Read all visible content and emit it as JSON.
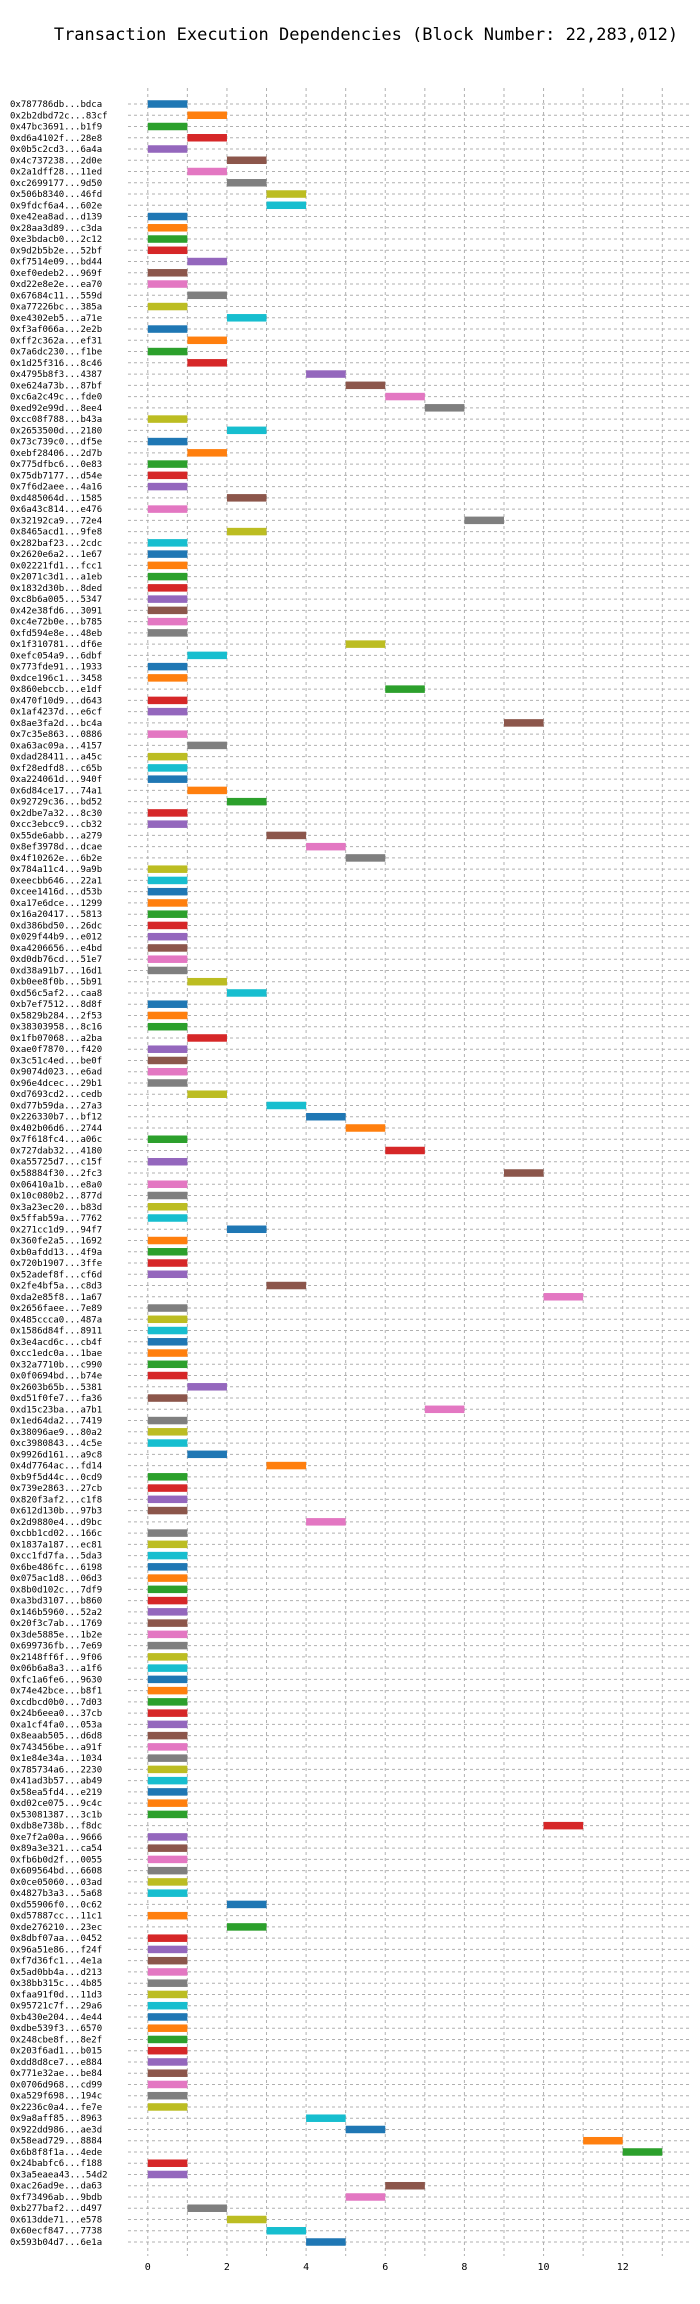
{
  "chart_data": {
    "type": "bar",
    "orientation": "horizontal-gantt",
    "title": "Transaction Execution Dependencies (Block Number: 22,283,012)",
    "xlabel": "",
    "ylabel": "",
    "xlim": [
      -0.5,
      13.7
    ],
    "xticks": [
      0,
      2,
      4,
      6,
      8,
      10,
      12
    ],
    "grid": true,
    "bar_width": 1,
    "palette": [
      "#1f77b4",
      "#ff7f0e",
      "#2ca02c",
      "#d62728",
      "#9467bd",
      "#8c564b",
      "#e377c2",
      "#7f7f7f",
      "#bcbd22",
      "#17becf"
    ],
    "transactions": [
      {
        "tx": "0x787786db...bdca",
        "start": 0
      },
      {
        "tx": "0x2b2dbd72c...83cf",
        "start": 1
      },
      {
        "tx": "0x47bc3691...b1f9",
        "start": 0
      },
      {
        "tx": "0xd6a4102f...28e8",
        "start": 1
      },
      {
        "tx": "0x0b5c2cd3...6a4a",
        "start": 0
      },
      {
        "tx": "0x4c737238...2d0e",
        "start": 2
      },
      {
        "tx": "0x2a1dff28...11ed",
        "start": 1
      },
      {
        "tx": "0xc2699177...9d50",
        "start": 2
      },
      {
        "tx": "0x506b8340...46fd",
        "start": 3
      },
      {
        "tx": "0x9fdcf6a4...602e",
        "start": 3
      },
      {
        "tx": "0xe42ea8ad...d139",
        "start": 0
      },
      {
        "tx": "0x28aa3d89...c3da",
        "start": 0
      },
      {
        "tx": "0xe3bdacb0...2c12",
        "start": 0
      },
      {
        "tx": "0x9d2b5b2e...52bf",
        "start": 0
      },
      {
        "tx": "0xf7514e09...bd44",
        "start": 1
      },
      {
        "tx": "0xef0edeb2...969f",
        "start": 0
      },
      {
        "tx": "0xd22e8e2e...ea70",
        "start": 0
      },
      {
        "tx": "0x67684c11...559d",
        "start": 1
      },
      {
        "tx": "0xa77226bc...385a",
        "start": 0
      },
      {
        "tx": "0xe4302eb5...a71e",
        "start": 2
      },
      {
        "tx": "0xf3af066a...2e2b",
        "start": 0
      },
      {
        "tx": "0xff2c362a...ef31",
        "start": 1
      },
      {
        "tx": "0x7a6dc230...f1be",
        "start": 0
      },
      {
        "tx": "0x1d25f316...8c46",
        "start": 1
      },
      {
        "tx": "0x4795b8f3...4387",
        "start": 4
      },
      {
        "tx": "0xe624a73b...87bf",
        "start": 5
      },
      {
        "tx": "0xc6a2c49c...fde0",
        "start": 6
      },
      {
        "tx": "0xed92e99d...8ee4",
        "start": 7
      },
      {
        "tx": "0xcc08f788...b43a",
        "start": 0
      },
      {
        "tx": "0x2653500d...2180",
        "start": 2
      },
      {
        "tx": "0x73c739c0...df5e",
        "start": 0
      },
      {
        "tx": "0xebf28406...2d7b",
        "start": 1
      },
      {
        "tx": "0x775dfbc6...0e83",
        "start": 0
      },
      {
        "tx": "0x75db7177...d54e",
        "start": 0
      },
      {
        "tx": "0x7f6d2aee...4a16",
        "start": 0
      },
      {
        "tx": "0xd485064d...1585",
        "start": 2
      },
      {
        "tx": "0x6a43c814...e476",
        "start": 0
      },
      {
        "tx": "0x32192ca9...72e4",
        "start": 8
      },
      {
        "tx": "0x8465acd1...9fe8",
        "start": 2
      },
      {
        "tx": "0x282baf23...2cdc",
        "start": 0
      },
      {
        "tx": "0x2620e6a2...1e67",
        "start": 0
      },
      {
        "tx": "0x02221fd1...fcc1",
        "start": 0
      },
      {
        "tx": "0x2071c3d1...a1eb",
        "start": 0
      },
      {
        "tx": "0x1832d30b...8ded",
        "start": 0
      },
      {
        "tx": "0xc8b6a005...5347",
        "start": 0
      },
      {
        "tx": "0x42e38fd6...3091",
        "start": 0
      },
      {
        "tx": "0xc4e72b0e...b785",
        "start": 0
      },
      {
        "tx": "0xfd594e8e...48eb",
        "start": 0
      },
      {
        "tx": "0x1f310781...df6e",
        "start": 5
      },
      {
        "tx": "0xefc054a9...6dbf",
        "start": 1
      },
      {
        "tx": "0x773fde91...1933",
        "start": 0
      },
      {
        "tx": "0xdce196c1...3458",
        "start": 0
      },
      {
        "tx": "0x860ebccb...e1df",
        "start": 6
      },
      {
        "tx": "0x470f10d9...d643",
        "start": 0
      },
      {
        "tx": "0x1af4237d...e6cf",
        "start": 0
      },
      {
        "tx": "0x8ae3fa2d...bc4a",
        "start": 9
      },
      {
        "tx": "0x7c35e863...0886",
        "start": 0
      },
      {
        "tx": "0xa63ac09a...4157",
        "start": 1
      },
      {
        "tx": "0xdad28411...a45c",
        "start": 0
      },
      {
        "tx": "0xf28edfd8...c65b",
        "start": 0
      },
      {
        "tx": "0xa224061d...940f",
        "start": 0
      },
      {
        "tx": "0x6d84ce17...74a1",
        "start": 1
      },
      {
        "tx": "0x92729c36...bd52",
        "start": 2
      },
      {
        "tx": "0x2dbe7a32...8c30",
        "start": 0
      },
      {
        "tx": "0xcc3ebcc9...cb32",
        "start": 0
      },
      {
        "tx": "0x55de6abb...a279",
        "start": 3
      },
      {
        "tx": "0x8ef3978d...dcae",
        "start": 4
      },
      {
        "tx": "0x4f10262e...6b2e",
        "start": 5
      },
      {
        "tx": "0x784a11c4...9a9b",
        "start": 0
      },
      {
        "tx": "0xeecbb646...22a1",
        "start": 0
      },
      {
        "tx": "0xcee1416d...d53b",
        "start": 0
      },
      {
        "tx": "0xa17e6dce...1299",
        "start": 0
      },
      {
        "tx": "0x16a20417...5813",
        "start": 0
      },
      {
        "tx": "0xd386bd50...26dc",
        "start": 0
      },
      {
        "tx": "0x029f44b9...e012",
        "start": 0
      },
      {
        "tx": "0xa4206656...e4bd",
        "start": 0
      },
      {
        "tx": "0xd0db76cd...51e7",
        "start": 0
      },
      {
        "tx": "0xd38a91b7...16d1",
        "start": 0
      },
      {
        "tx": "0xb0ee8f0b...5b91",
        "start": 1
      },
      {
        "tx": "0xd56c5af2...caa8",
        "start": 2
      },
      {
        "tx": "0xb7ef7512...8d8f",
        "start": 0
      },
      {
        "tx": "0x5829b284...2f53",
        "start": 0
      },
      {
        "tx": "0x38303958...8c16",
        "start": 0
      },
      {
        "tx": "0x1fb07068...a2ba",
        "start": 1
      },
      {
        "tx": "0xae0f7870...f420",
        "start": 0
      },
      {
        "tx": "0x3c51c4ed...be0f",
        "start": 0
      },
      {
        "tx": "0x9074d023...e6ad",
        "start": 0
      },
      {
        "tx": "0x96e4dcec...29b1",
        "start": 0
      },
      {
        "tx": "0xd7693cd2...cedb",
        "start": 1
      },
      {
        "tx": "0xd77b59da...27a3",
        "start": 3
      },
      {
        "tx": "0x226330b7...bf12",
        "start": 4
      },
      {
        "tx": "0x402b06d6...2744",
        "start": 5
      },
      {
        "tx": "0x7f618fc4...a06c",
        "start": 0
      },
      {
        "tx": "0x727dab32...4180",
        "start": 6
      },
      {
        "tx": "0xa55725d7...c15f",
        "start": 0
      },
      {
        "tx": "0x58884f30...2fc3",
        "start": 9
      },
      {
        "tx": "0x06410a1b...e8a0",
        "start": 0
      },
      {
        "tx": "0x10c080b2...877d",
        "start": 0
      },
      {
        "tx": "0x3a23ec20...b83d",
        "start": 0
      },
      {
        "tx": "0x5ffab59a...7762",
        "start": 0
      },
      {
        "tx": "0x271cc1d9...94f7",
        "start": 2
      },
      {
        "tx": "0x360fe2a5...1692",
        "start": 0
      },
      {
        "tx": "0xb0afdd13...4f9a",
        "start": 0
      },
      {
        "tx": "0x720b1907...3ffe",
        "start": 0
      },
      {
        "tx": "0x52adef8f...cf6d",
        "start": 0
      },
      {
        "tx": "0x2fe4bf5a...c8d3",
        "start": 3
      },
      {
        "tx": "0xda2e85f8...1a67",
        "start": 10
      },
      {
        "tx": "0x2656faee...7e89",
        "start": 0
      },
      {
        "tx": "0x485ccca0...487a",
        "start": 0
      },
      {
        "tx": "0x1586d84f...8911",
        "start": 0
      },
      {
        "tx": "0x3e4acd6c...cb4f",
        "start": 0
      },
      {
        "tx": "0xcc1edc0a...1bae",
        "start": 0
      },
      {
        "tx": "0x32a7710b...c990",
        "start": 0
      },
      {
        "tx": "0x0f0694bd...b74e",
        "start": 0
      },
      {
        "tx": "0x2603b65b...5381",
        "start": 1
      },
      {
        "tx": "0xd51f0fe7...fa36",
        "start": 0
      },
      {
        "tx": "0xd15c23ba...a7b1",
        "start": 7
      },
      {
        "tx": "0x1ed64da2...7419",
        "start": 0
      },
      {
        "tx": "0x38096ae9...80a2",
        "start": 0
      },
      {
        "tx": "0xc3980843...4c5e",
        "start": 0
      },
      {
        "tx": "0x9926d161...a9c8",
        "start": 1
      },
      {
        "tx": "0x4d7764ac...fd14",
        "start": 3
      },
      {
        "tx": "0xb9f5d44c...0cd9",
        "start": 0
      },
      {
        "tx": "0x739e2863...27cb",
        "start": 0
      },
      {
        "tx": "0x820f3af2...c1f8",
        "start": 0
      },
      {
        "tx": "0x612d130b...97b3",
        "start": 0
      },
      {
        "tx": "0x2d9880e4...d9bc",
        "start": 4
      },
      {
        "tx": "0xcbb1cd02...166c",
        "start": 0
      },
      {
        "tx": "0x1837a187...ec81",
        "start": 0
      },
      {
        "tx": "0xcc1fd7fa...5da3",
        "start": 0
      },
      {
        "tx": "0x6be486fc...6198",
        "start": 0
      },
      {
        "tx": "0x075ac1d8...06d3",
        "start": 0
      },
      {
        "tx": "0x8b0d102c...7df9",
        "start": 0
      },
      {
        "tx": "0xa3bd3107...b860",
        "start": 0
      },
      {
        "tx": "0x146b5960...52a2",
        "start": 0
      },
      {
        "tx": "0x20f3c7ab...1769",
        "start": 0
      },
      {
        "tx": "0x3de5885e...1b2e",
        "start": 0
      },
      {
        "tx": "0x699736fb...7e69",
        "start": 0
      },
      {
        "tx": "0x2148ff6f...9f06",
        "start": 0
      },
      {
        "tx": "0x06b6a8a3...a1f6",
        "start": 0
      },
      {
        "tx": "0xfc1a6fe6...9630",
        "start": 0
      },
      {
        "tx": "0x74e42bce...b8f1",
        "start": 0
      },
      {
        "tx": "0xcdbcd0b0...7d03",
        "start": 0
      },
      {
        "tx": "0x24b6eea0...37cb",
        "start": 0
      },
      {
        "tx": "0xa1cf4fa0...053a",
        "start": 0
      },
      {
        "tx": "0x8eaab505...d6d8",
        "start": 0
      },
      {
        "tx": "0x743456be...a91f",
        "start": 0
      },
      {
        "tx": "0x1e84e34a...1034",
        "start": 0
      },
      {
        "tx": "0x785734a6...2230",
        "start": 0
      },
      {
        "tx": "0x41ad3b57...ab49",
        "start": 0
      },
      {
        "tx": "0x58ea5fd4...e219",
        "start": 0
      },
      {
        "tx": "0xd02ce075...9c4c",
        "start": 0
      },
      {
        "tx": "0x53081387...3c1b",
        "start": 0
      },
      {
        "tx": "0xdb8e738b...f8dc",
        "start": 10
      },
      {
        "tx": "0xe7f2a00a...9666",
        "start": 0
      },
      {
        "tx": "0x89a3e321...ca54",
        "start": 0
      },
      {
        "tx": "0xfb6b0d2f...0055",
        "start": 0
      },
      {
        "tx": "0x609564bd...6608",
        "start": 0
      },
      {
        "tx": "0x0ce05060...03ad",
        "start": 0
      },
      {
        "tx": "0x4827b3a3...5a68",
        "start": 0
      },
      {
        "tx": "0xd55906f0...0c62",
        "start": 2
      },
      {
        "tx": "0xd57887cc...11c1",
        "start": 0
      },
      {
        "tx": "0xde276210...23ec",
        "start": 2
      },
      {
        "tx": "0x8dbf07aa...0452",
        "start": 0
      },
      {
        "tx": "0x96a51e86...f24f",
        "start": 0
      },
      {
        "tx": "0xf7d36fc1...4e1a",
        "start": 0
      },
      {
        "tx": "0x5ad0bb4a...d213",
        "start": 0
      },
      {
        "tx": "0x38bb315c...4b85",
        "start": 0
      },
      {
        "tx": "0xfaa91f0d...11d3",
        "start": 0
      },
      {
        "tx": "0x95721c7f...29a6",
        "start": 0
      },
      {
        "tx": "0xb430e204...4e44",
        "start": 0
      },
      {
        "tx": "0xdbe539f3...6570",
        "start": 0
      },
      {
        "tx": "0x248cbe8f...8e2f",
        "start": 0
      },
      {
        "tx": "0x203f6ad1...b015",
        "start": 0
      },
      {
        "tx": "0xdd8d8ce7...e884",
        "start": 0
      },
      {
        "tx": "0x771e32ae...be84",
        "start": 0
      },
      {
        "tx": "0x0706d968...cd99",
        "start": 0
      },
      {
        "tx": "0xa529f698...194c",
        "start": 0
      },
      {
        "tx": "0x2236c0a4...fe7e",
        "start": 0
      },
      {
        "tx": "0x9a8aff85...8963",
        "start": 4
      },
      {
        "tx": "0x922dd986...ae3d",
        "start": 5
      },
      {
        "tx": "0x58ead729...8884",
        "start": 11
      },
      {
        "tx": "0x6b8f8f1a...4ede",
        "start": 12
      },
      {
        "tx": "0x24babfc6...f188",
        "start": 0
      },
      {
        "tx": "0x3a5eaea43...54d2",
        "start": 0
      },
      {
        "tx": "0xac26ad9e...da63",
        "start": 6
      },
      {
        "tx": "0xf73496ab...9bdb",
        "start": 5
      },
      {
        "tx": "0xb277baf2...d497",
        "start": 1
      },
      {
        "tx": "0x613dde71...e578",
        "start": 2
      },
      {
        "tx": "0x60ecf847...7738",
        "start": 3
      },
      {
        "tx": "0x593b04d7...6e1a",
        "start": 4
      }
    ]
  }
}
